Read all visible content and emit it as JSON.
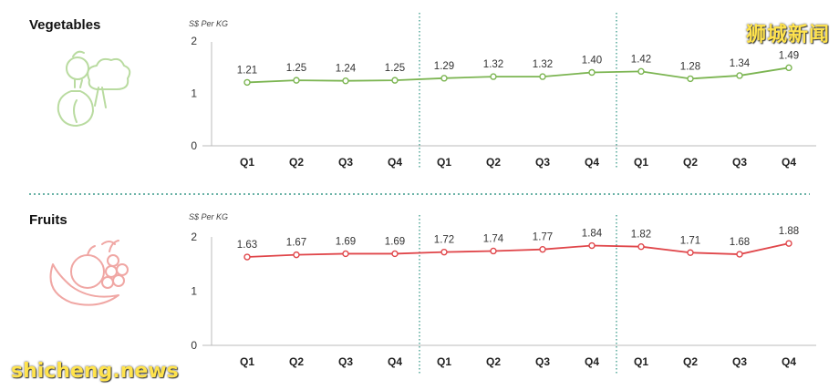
{
  "watermarks": {
    "cn": "狮城新闻",
    "en": "shicheng.news"
  },
  "chart_data": [
    {
      "type": "line",
      "title": "Vegetables",
      "ylabel": "S$ Per KG",
      "ylim": [
        0,
        2
      ],
      "yticks": [
        "0",
        "1",
        "2"
      ],
      "categories": [
        "Q1",
        "Q2",
        "Q3",
        "Q4",
        "Q1",
        "Q2",
        "Q3",
        "Q4",
        "Q1",
        "Q2",
        "Q3",
        "Q4"
      ],
      "series": [
        {
          "values": [
            1.21,
            1.25,
            1.24,
            1.25,
            1.29,
            1.32,
            1.32,
            1.4,
            1.42,
            1.28,
            1.34,
            1.49
          ],
          "labels": [
            "1.21",
            "1.25",
            "1.24",
            "1.25",
            "1.29",
            "1.32",
            "1.32",
            "1.40",
            "1.42",
            "1.28",
            "1.34",
            "1.49"
          ],
          "color": "#7cb552"
        }
      ],
      "gridlines": false,
      "divider_color": "#3a9a8a",
      "icon": "vegetables-icon",
      "icon_color": "#b9dba0"
    },
    {
      "type": "line",
      "title": "Fruits",
      "ylabel": "S$ Per KG",
      "ylim": [
        0,
        2
      ],
      "yticks": [
        "0",
        "1",
        "2"
      ],
      "categories": [
        "Q1",
        "Q2",
        "Q3",
        "Q4",
        "Q1",
        "Q2",
        "Q3",
        "Q4",
        "Q1",
        "Q2",
        "Q3",
        "Q4"
      ],
      "series": [
        {
          "values": [
            1.63,
            1.67,
            1.69,
            1.69,
            1.72,
            1.74,
            1.77,
            1.84,
            1.82,
            1.71,
            1.68,
            1.88
          ],
          "labels": [
            "1.63",
            "1.67",
            "1.69",
            "1.69",
            "1.72",
            "1.74",
            "1.77",
            "1.84",
            "1.82",
            "1.71",
            "1.68",
            "1.88"
          ],
          "color": "#e0464a"
        }
      ],
      "gridlines": false,
      "divider_color": "#3a9a8a",
      "icon": "fruits-icon",
      "icon_color": "#f0a7a4"
    }
  ]
}
